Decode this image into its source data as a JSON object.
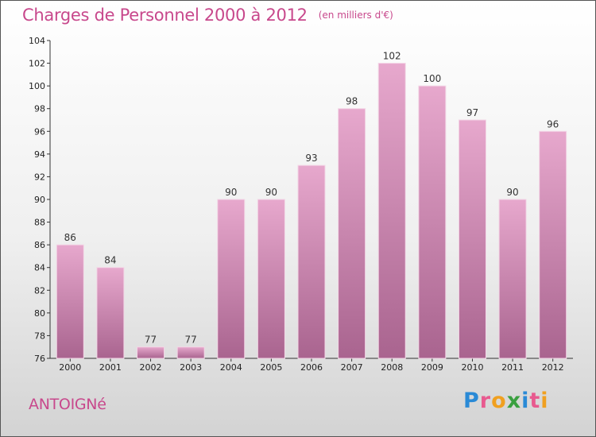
{
  "header": {
    "title": "Charges de Personnel 2000 à 2012",
    "subtitle": "(en milliers d'€)"
  },
  "footer": {
    "commune": "ANTOIGNé",
    "logo_letters": [
      "P",
      "r",
      "o",
      "x",
      "i",
      "t",
      "i"
    ],
    "logo_colors": [
      "#2a8ad6",
      "#e85a8f",
      "#f0a020",
      "#3aa040",
      "#2a8ad6",
      "#e85a8f",
      "#f0a020"
    ]
  },
  "colors": {
    "bar_top": "#e7a8cd",
    "bar_bottom": "#a9648f",
    "accent": "#c8488c"
  },
  "chart_data": {
    "type": "bar",
    "title": "Charges de Personnel 2000 à 2012",
    "subtitle": "(en milliers d'€)",
    "xlabel": "",
    "ylabel": "",
    "categories": [
      "2000",
      "2001",
      "2002",
      "2003",
      "2004",
      "2005",
      "2006",
      "2007",
      "2008",
      "2009",
      "2010",
      "2011",
      "2012"
    ],
    "values": [
      86,
      84,
      77,
      77,
      90,
      90,
      93,
      98,
      102,
      100,
      97,
      90,
      96
    ],
    "ylim": [
      76,
      104
    ],
    "yticks": [
      76,
      78,
      80,
      82,
      84,
      86,
      88,
      90,
      92,
      94,
      96,
      98,
      100,
      102,
      104
    ],
    "grid": false,
    "legend": "none"
  }
}
